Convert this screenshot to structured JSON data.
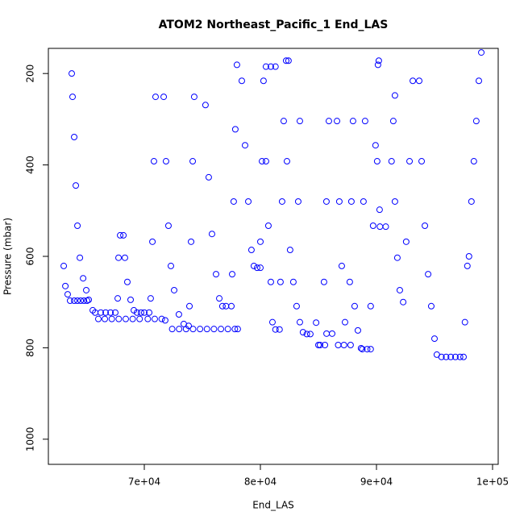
{
  "chart_data": {
    "type": "scatter",
    "title": "ATOM2 Northeast_Pacific_1 End_LAS",
    "x_label": "End_LAS",
    "y_label": "Pressure (mbar)",
    "color": "#0000ff",
    "xlim": [
      61736,
      100486
    ],
    "ylim": [
      1055,
      145
    ],
    "xticks": [
      {
        "value": 70000,
        "label": "7e+04"
      },
      {
        "value": 80000,
        "label": "8e+04"
      },
      {
        "value": 90000,
        "label": "9e+04"
      },
      {
        "value": 100000,
        "label": "1e+05"
      }
    ],
    "yticks": [
      200,
      400,
      600,
      800,
      1000
    ],
    "x": [
      63060,
      63200,
      63400,
      63610,
      63750,
      63820,
      63960,
      64100,
      64240,
      64450,
      64730,
      65000,
      65210,
      63960,
      64240,
      64520,
      64800,
      65070,
      65560,
      65770,
      66250,
      66670,
      67090,
      67500,
      66040,
      66600,
      67200,
      67800,
      68400,
      69000,
      69600,
      70300,
      70900,
      71500,
      71800,
      67710,
      67780,
      67920,
      68200,
      68330,
      68540,
      68820,
      69100,
      69370,
      69720,
      70000,
      70420,
      70550,
      70700,
      70830,
      70970,
      71670,
      71870,
      72080,
      72290,
      72570,
      72980,
      73400,
      73820,
      72400,
      73000,
      73600,
      74200,
      74800,
      75400,
      76000,
      76600,
      77200,
      77800,
      78050,
      73890,
      74030,
      74170,
      74300,
      75270,
      75550,
      75830,
      76180,
      76460,
      76730,
      77040,
      77500,
      77570,
      77700,
      77840,
      77980,
      78400,
      78680,
      78960,
      79230,
      79440,
      79720,
      80000,
      80000,
      80140,
      80270,
      80480,
      80900,
      81300,
      80480,
      80690,
      80900,
      81040,
      81300,
      81650,
      81730,
      81870,
      82010,
      82220,
      82420,
      82290,
      82560,
      82840,
      83120,
      83400,
      83670,
      84000,
      84300,
      83260,
      83400,
      84800,
      85000,
      85140,
      85560,
      85480,
      85690,
      85900,
      85700,
      86180,
      86600,
      86800,
      87010,
      87290,
      86700,
      87200,
      87770,
      87700,
      87840,
      87980,
      88120,
      88400,
      88670,
      88780,
      89200,
      89500,
      88880,
      89020,
      89500,
      89710,
      89920,
      90130,
      90200,
      90060,
      90270,
      90300,
      90800,
      91300,
      91450,
      91590,
      91590,
      91800,
      92010,
      92300,
      92560,
      92850,
      93130,
      93680,
      93890,
      94170,
      94450,
      94720,
      95000,
      95200,
      95600,
      96000,
      96400,
      96800,
      97200,
      97500,
      97620,
      97830,
      97970,
      98180,
      98390,
      98600,
      98820,
      99030
    ],
    "values": [
      621,
      665,
      683,
      697,
      200,
      251,
      339,
      445,
      533,
      603,
      648,
      674,
      695,
      697,
      697,
      697,
      697,
      697,
      718,
      723,
      723,
      723,
      723,
      723,
      737,
      737,
      737,
      737,
      737,
      737,
      737,
      737,
      737,
      737,
      740,
      692,
      603,
      554,
      554,
      603,
      656,
      695,
      718,
      723,
      723,
      723,
      723,
      692,
      568,
      392,
      251,
      251,
      392,
      533,
      621,
      674,
      727,
      748,
      752,
      759,
      759,
      759,
      759,
      759,
      759,
      759,
      759,
      759,
      759,
      759,
      709,
      568,
      392,
      251,
      269,
      427,
      551,
      639,
      692,
      709,
      709,
      709,
      639,
      480,
      322,
      181,
      216,
      357,
      480,
      586,
      621,
      625,
      625,
      568,
      392,
      216,
      185,
      185,
      185,
      392,
      533,
      656,
      744,
      760,
      760,
      656,
      480,
      304,
      172,
      172,
      392,
      586,
      656,
      709,
      744,
      766,
      770,
      770,
      480,
      304,
      745,
      794,
      794,
      794,
      656,
      480,
      304,
      769,
      769,
      304,
      480,
      621,
      744,
      794,
      794,
      794,
      656,
      480,
      304,
      709,
      762,
      801,
      803,
      803,
      803,
      480,
      304,
      709,
      533,
      357,
      181,
      172,
      392,
      498,
      535,
      535,
      392,
      304,
      248,
      480,
      603,
      674,
      700,
      568,
      392,
      216,
      216,
      392,
      533,
      639,
      709,
      780,
      815,
      820,
      820,
      820,
      820,
      820,
      820,
      744,
      621,
      600,
      480,
      392,
      304,
      216,
      154
    ]
  }
}
